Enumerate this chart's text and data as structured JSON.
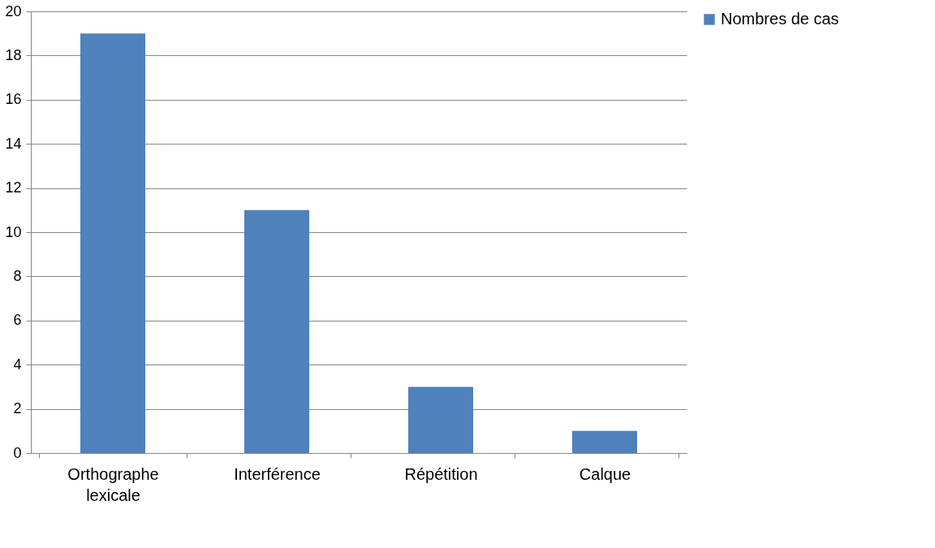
{
  "chart_data": {
    "type": "bar",
    "categories": [
      "Orthographe lexicale",
      "Interférence",
      "Répétition",
      "Calque"
    ],
    "series": [
      {
        "name": "Nombres de cas",
        "color": "#4f81bd",
        "values": [
          19,
          11,
          3,
          1
        ]
      }
    ],
    "ylim": [
      0,
      20
    ],
    "yticks": [
      0,
      2,
      4,
      6,
      8,
      10,
      12,
      14,
      16,
      18,
      20
    ],
    "grid": "y",
    "legend": "right"
  }
}
